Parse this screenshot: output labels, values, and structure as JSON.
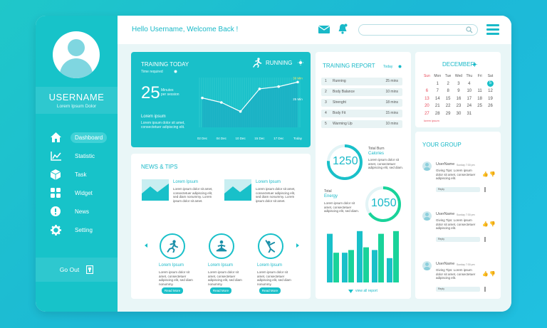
{
  "header": {
    "greeting": "Hello Username, Welcome Back !",
    "search_placeholder": ""
  },
  "sidebar": {
    "username": "USERNAME",
    "subtitle": "Lorem Ipsum Dolor",
    "items": [
      {
        "label": "Dashboard",
        "icon": "home-icon",
        "active": true
      },
      {
        "label": "Statistic",
        "icon": "chart-icon",
        "active": false
      },
      {
        "label": "Task",
        "icon": "cube-icon",
        "active": false
      },
      {
        "label": "Widget",
        "icon": "grid-icon",
        "active": false
      },
      {
        "label": "News",
        "icon": "alert-icon",
        "active": false
      },
      {
        "label": "Setting",
        "icon": "gear-icon",
        "active": false
      }
    ],
    "go_out": "Go Out"
  },
  "training_today": {
    "title": "TRAINING TODAY",
    "activity": "RUNNING",
    "time_label": "Time required",
    "value": "25",
    "unit_line1": "Minutes",
    "unit_line2": "per session",
    "lorem_title": "Lorem ipsum",
    "lorem_text": "Lorem ipsum dolor sit amet, consectetuer adipiscing elit.",
    "peak_label": "30 Min",
    "right_label": "25 Min"
  },
  "chart_data": {
    "type": "area",
    "categories": [
      "02 Dec",
      "04 Dec",
      "10 Dec",
      "15 Dec",
      "17 Dec",
      "Today"
    ],
    "values": [
      13,
      11,
      7,
      17,
      18,
      20
    ],
    "title": "",
    "xlabel": "",
    "ylabel": ""
  },
  "news": {
    "title": "NEWS & TIPS",
    "articles": [
      {
        "title": "Lorem Ipsum",
        "text": "Lorem ipsum dolor sit amet, consectetuer adipiscing elit, sed diam nonummy. Lorem ipsum dolor sit amet."
      },
      {
        "title": "Lorem Ipsum",
        "text": "Lorem ipsum dolor sit amet, consectetuer adipiscing elit, sed diam nonummy. Lorem ipsum dolor sit amet."
      }
    ],
    "tips": [
      {
        "title": "Lorem Ipsum",
        "icon": "running-person-icon",
        "text": "Lorem ipsum dolor sit amet, consectetuer adipiscing elit, sed diam nonummy.",
        "button": "Read More"
      },
      {
        "title": "Lorem Ipsum",
        "icon": "meditation-person-icon",
        "text": "Lorem ipsum dolor sit amet, consectetuer adipiscing elit, sed diam nonummy.",
        "button": "Read More"
      },
      {
        "title": "Lorem Ipsum",
        "icon": "stretching-person-icon",
        "text": "Lorem ipsum dolor sit amet, consectetuer adipiscing elit, sed diam nonummy.",
        "button": "Read More"
      }
    ]
  },
  "report": {
    "title": "TRAINING REPORT",
    "period": "Today",
    "rows": [
      {
        "num": "1",
        "name": "Running",
        "time": "25 mins"
      },
      {
        "num": "2",
        "name": "Body Balance",
        "time": "10 mins"
      },
      {
        "num": "3",
        "name": "Strenght",
        "time": "18 mins"
      },
      {
        "num": "4",
        "name": "Body Fit",
        "time": "15 mins"
      },
      {
        "num": "5",
        "name": "Warming Up",
        "time": "10 mins"
      }
    ],
    "calories_value": "1250",
    "calories_label1": "Total Burn",
    "calories_label2": "Calories",
    "calories_text": "Lorem ipsum dolor sit amet, consectetuer adipiscing elit, sed diam.",
    "energy_value": "1050",
    "energy_label1": "Total",
    "energy_label2": "Energy",
    "energy_text": "Lorem ipsum dolor sit amet, consectetuer adipiscing elit, sed diam.",
    "bars": [
      {
        "a": 0.9,
        "b": 0.55
      },
      {
        "a": 0.55,
        "b": 0.6
      },
      {
        "a": 0.95,
        "b": 0.65
      },
      {
        "a": 0.6,
        "b": 0.9
      },
      {
        "a": 0.45,
        "b": 0.95
      }
    ],
    "view_all": "view all report"
  },
  "calendar": {
    "month": "DECEMBER",
    "days": [
      "Sun",
      "Mon",
      "Tue",
      "Wed",
      "Thu",
      "Fri",
      "Sat"
    ],
    "weeks": [
      [
        "",
        "",
        "",
        "",
        "",
        "",
        ""
      ],
      [
        "",
        "1",
        "2",
        "3",
        "4",
        "",
        "5"
      ],
      [
        "6",
        "7",
        "8",
        "9",
        "10",
        "11",
        "12"
      ],
      [
        "13",
        "14",
        "15",
        "16",
        "17",
        "18",
        "19"
      ],
      [
        "20",
        "21",
        "22",
        "23",
        "24",
        "25",
        "26"
      ],
      [
        "27",
        "28",
        "29",
        "30",
        "31",
        "",
        ""
      ]
    ],
    "note": "lorem ipsum"
  },
  "group": {
    "title": "YOUR GROUP",
    "messages": [
      {
        "name": "UserName",
        "time": "Sunday 7:30 pm",
        "text": "Giving Tips: Lorem ipsum dolor sit amet, consectetuer adipiscing elit.",
        "reply": "Reply"
      },
      {
        "name": "UserName",
        "time": "Sunday 7:30 pm",
        "text": "Giving Tips: Lorem ipsum dolor sit amet, consectetuer adipiscing elit.",
        "reply": "Reply"
      },
      {
        "name": "UserName",
        "time": "Sunday 7:30 pm",
        "text": "Giving Tips: Lorem ipsum dolor sit amet, consectetuer adipiscing elit.",
        "reply": "Reply"
      }
    ]
  },
  "colors": {
    "accent": "#19c0c9",
    "accent_green": "#19d39a",
    "text_accent": "#19b9c8",
    "sunday_red": "#e84a5a"
  }
}
